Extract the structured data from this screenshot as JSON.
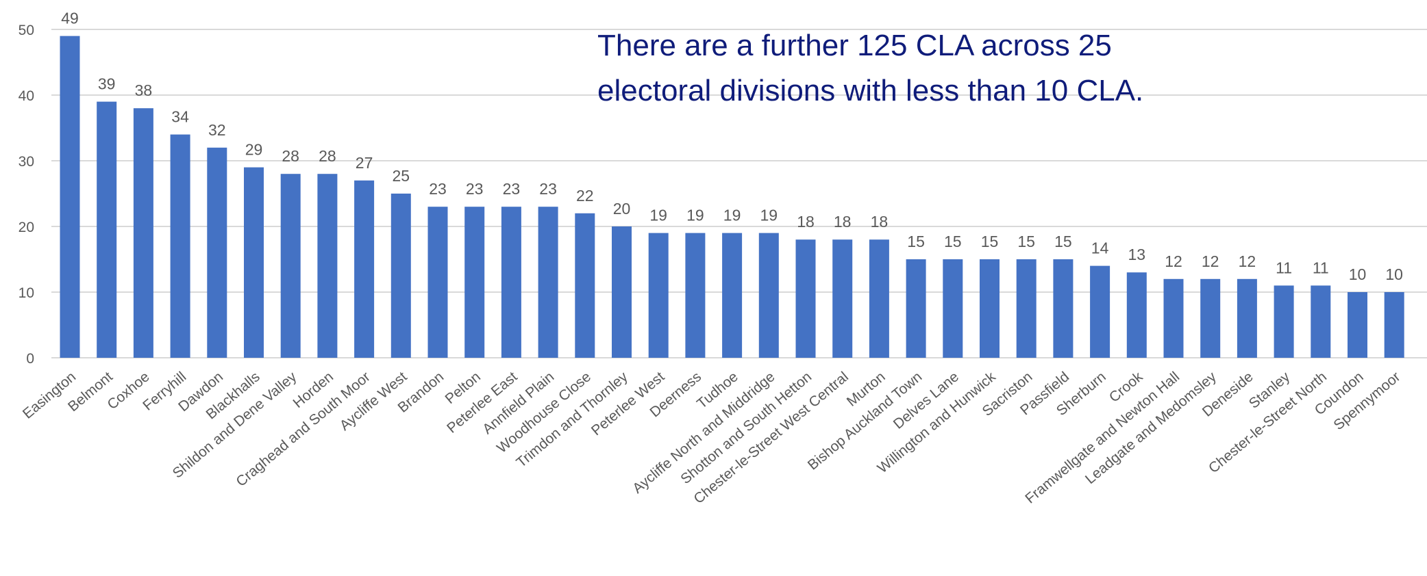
{
  "chart_data": {
    "type": "bar",
    "categories": [
      "Easington",
      "Belmont",
      "Coxhoe",
      "Ferryhill",
      "Dawdon",
      "Blackhalls",
      "Shildon and Dene Valley",
      "Horden",
      "Craghead and South Moor",
      "Aycliffe West",
      "Brandon",
      "Pelton",
      "Peterlee East",
      "Annfield Plain",
      "Woodhouse Close",
      "Trimdon and Thornley",
      "Peterlee West",
      "Deerness",
      "Tudhoe",
      "Aycliffe North and Middridge",
      "Shotton and South Hetton",
      "Chester-le-Street West Central",
      "Murton",
      "Bishop Auckland Town",
      "Delves Lane",
      "Willington and Hunwick",
      "Sacriston",
      "Passfield",
      "Sherburn",
      "Crook",
      "Framwellgate and Newton Hall",
      "Leadgate and Medomsley",
      "Deneside",
      "Stanley",
      "Chester-le-Street North",
      "Coundon",
      "Spennymoor"
    ],
    "values": [
      49,
      39,
      38,
      34,
      32,
      29,
      28,
      28,
      27,
      25,
      23,
      23,
      23,
      23,
      22,
      20,
      19,
      19,
      19,
      19,
      18,
      18,
      18,
      15,
      15,
      15,
      15,
      15,
      14,
      13,
      12,
      12,
      12,
      11,
      11,
      10,
      10
    ],
    "yticks": [
      "0",
      "10",
      "20",
      "30",
      "40",
      "50"
    ],
    "ylim": [
      0,
      50
    ],
    "grid": true,
    "bar_color": "#4472c4",
    "grid_color": "#d9d9d9",
    "annotation_lines": [
      "There are a further 125 CLA across 25",
      "electoral divisions with less than 10 CLA."
    ],
    "annotation_color": "#0f1c7a"
  }
}
